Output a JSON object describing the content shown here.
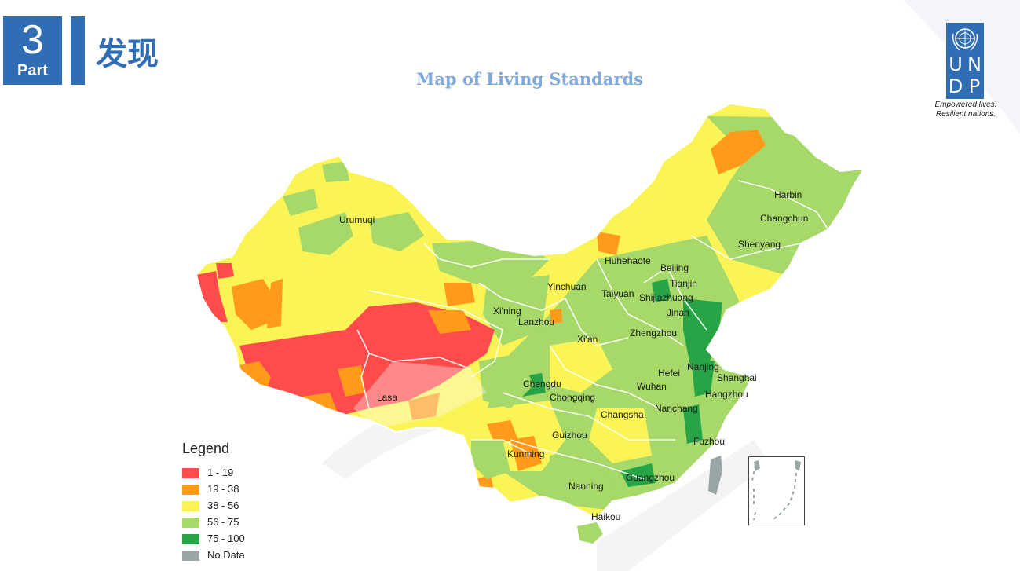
{
  "header": {
    "part_number": "3",
    "part_word": "Part",
    "section_title": "发现"
  },
  "map": {
    "title": "Map of Living Standards",
    "cities": [
      {
        "name": "Harbin"
      },
      {
        "name": "Changchun"
      },
      {
        "name": "Shenyang"
      },
      {
        "name": "Urumuqi"
      },
      {
        "name": "Huhehaote"
      },
      {
        "name": "Beijing"
      },
      {
        "name": "Tianjin"
      },
      {
        "name": "Yinchuan"
      },
      {
        "name": "Taiyuan"
      },
      {
        "name": "Shijiazhuang"
      },
      {
        "name": "Xi'ning"
      },
      {
        "name": "Lanzhou"
      },
      {
        "name": "Jinan"
      },
      {
        "name": "Xi'an"
      },
      {
        "name": "Zhengzhou"
      },
      {
        "name": "Nanjing"
      },
      {
        "name": "Shanghai"
      },
      {
        "name": "Hefei"
      },
      {
        "name": "Chengdu"
      },
      {
        "name": "Wuhan"
      },
      {
        "name": "Hangzhou"
      },
      {
        "name": "Lasa"
      },
      {
        "name": "Chongqing"
      },
      {
        "name": "Changsha"
      },
      {
        "name": "Nanchang"
      },
      {
        "name": "Guizhou"
      },
      {
        "name": "Fuzhou"
      },
      {
        "name": "Kunming"
      },
      {
        "name": "Nanning"
      },
      {
        "name": "Guangzhou"
      },
      {
        "name": "Haikou"
      }
    ]
  },
  "legend": {
    "title": "Legend",
    "items": [
      {
        "label": "1 - 19",
        "color": "#ff4b4b"
      },
      {
        "label": "19 - 38",
        "color": "#ff9a1a"
      },
      {
        "label": "38 - 56",
        "color": "#fbf456"
      },
      {
        "label": "56 - 75",
        "color": "#a6d86a"
      },
      {
        "label": "75 - 100",
        "color": "#27a446"
      },
      {
        "label": "No Data",
        "color": "#9aa5a5"
      }
    ]
  },
  "logo": {
    "letters": [
      "U",
      "N",
      "D",
      "P"
    ],
    "tagline_1": "Empowered lives.",
    "tagline_2": "Resilient nations."
  },
  "colors": {
    "brand_blue": "#2f6db5",
    "title_blue": "#7fa9dc"
  }
}
